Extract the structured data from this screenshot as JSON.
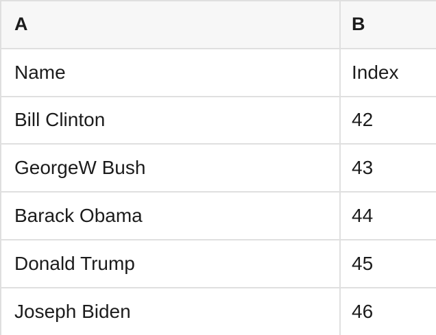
{
  "sheet": {
    "column_headers": [
      "A",
      "B"
    ],
    "rows": [
      [
        "Name",
        "Index"
      ],
      [
        "Bill Clinton",
        "42"
      ],
      [
        "GeorgeW Bush",
        "43"
      ],
      [
        "Barack Obama",
        "44"
      ],
      [
        "Donald Trump",
        "45"
      ],
      [
        "Joseph Biden",
        "46"
      ]
    ],
    "colors": {
      "header_bg": "#f7f7f7",
      "border": "#dfdfdf",
      "text": "#1c1c1c",
      "row_bg": "#ffffff"
    }
  }
}
